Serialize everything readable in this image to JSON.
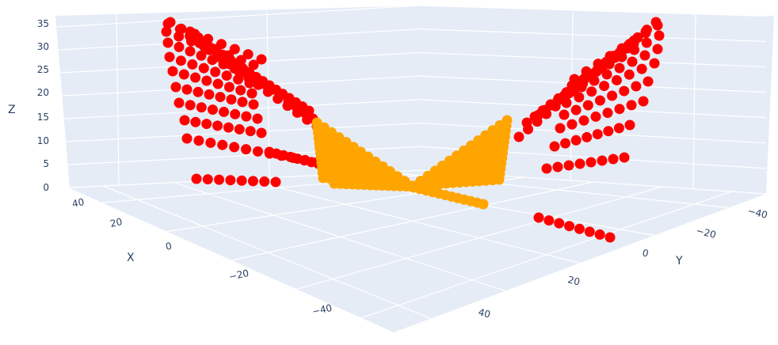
{
  "chart_data": {
    "type": "scatter3d",
    "title": "",
    "axes": {
      "x": {
        "label": "X",
        "ticks": [
          40,
          20,
          0,
          -20,
          -40
        ],
        "range": [
          -50,
          50
        ]
      },
      "y": {
        "label": "Y",
        "ticks": [
          -40,
          -20,
          0,
          20,
          40
        ],
        "range": [
          -50,
          50
        ]
      },
      "z": {
        "label": "Z",
        "ticks": [
          0,
          5,
          10,
          15,
          20,
          25,
          30,
          35
        ],
        "range": [
          0,
          35
        ]
      }
    },
    "scene_background": "#e5ecf6",
    "grid_color": "#ffffff",
    "font_color": "#2a3f5f",
    "series": [
      {
        "name": "outer points",
        "color": "#ff0000",
        "marker_size": 12,
        "description": "Two wing-shaped clusters of red markers rising from z≈0 to z≈35, one on each side (left and right), each made of sloped rows of ~8 points"
      },
      {
        "name": "inner points",
        "color": "#ffa500",
        "marker_size": 12,
        "description": "Dense orange V-shaped cluster in the center near z≈0–15, two wings meeting at the origin"
      }
    ],
    "grid": true,
    "legend": "none"
  },
  "labels": {
    "x_title": "X",
    "y_title": "Y",
    "z_title": "Z",
    "z_ticks": [
      "35",
      "30",
      "25",
      "20",
      "15",
      "10",
      "5",
      "0"
    ],
    "x_ticks": [
      "40",
      "20",
      "0",
      "−20",
      "−40"
    ],
    "y_ticks": [
      "−40",
      "−20",
      "0",
      "20",
      "40"
    ]
  }
}
